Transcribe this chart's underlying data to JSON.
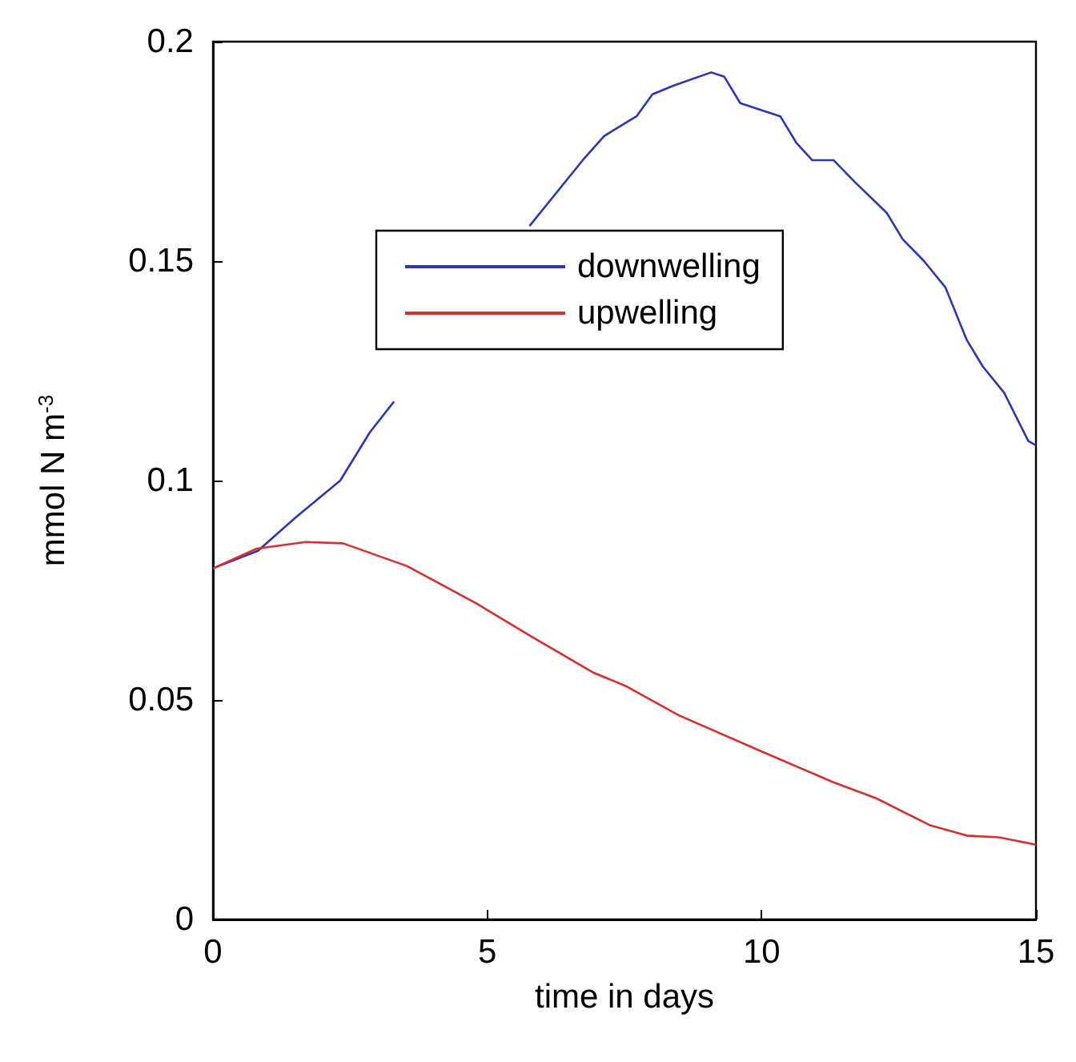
{
  "chart_data": {
    "type": "line",
    "xlabel": "time in days",
    "ylabel": "mmol N m$^{-3}$",
    "xlim": [
      0,
      15
    ],
    "xticks": [
      0,
      5,
      10,
      15
    ],
    "ylim": [
      0,
      0.2
    ],
    "yticks": [
      0,
      0.05,
      0.1,
      0.15,
      0.2
    ],
    "grid": false,
    "legend": "top",
    "marker": "none",
    "line_style": "solid",
    "series": [
      {
        "name": "downwelling",
        "color": "#2b35b8",
        "x": [
          0,
          0.82,
          1.5,
          2.32,
          2.86,
          3.3,
          4.5,
          5.77,
          6.74,
          7.13,
          7.72,
          8.01,
          8.4,
          9.08,
          9.32,
          9.61,
          9.85,
          10.34,
          10.63,
          10.92,
          11.31,
          11.7,
          12.28,
          12.57,
          12.96,
          13.35,
          13.74,
          14.03,
          14.42,
          14.86,
          15
        ],
        "values": [
          0.08,
          0.084,
          0.0915,
          0.1,
          0.111,
          0.118,
          null,
          0.158,
          0.173,
          0.1785,
          0.183,
          0.188,
          0.19,
          0.193,
          0.192,
          0.186,
          0.185,
          0.183,
          0.177,
          0.173,
          0.173,
          0.168,
          0.161,
          0.155,
          0.15,
          0.144,
          0.132,
          0.126,
          0.12,
          0.109,
          0.108
        ]
      },
      {
        "name": "upwelling",
        "color": "#d62f2f",
        "x": [
          0,
          0.8,
          1.69,
          2.37,
          3.54,
          4.8,
          5.77,
          6.94,
          7.52,
          8.49,
          10.05,
          11.3,
          12.09,
          13.06,
          13.74,
          14.33,
          14.9,
          15
        ],
        "values": [
          0.08,
          0.0845,
          0.086,
          0.0857,
          0.0805,
          0.072,
          0.0647,
          0.0562,
          0.0532,
          0.0465,
          0.038,
          0.0313,
          0.0276,
          0.0215,
          0.0191,
          0.0187,
          0.0173,
          0.017
        ]
      }
    ]
  }
}
